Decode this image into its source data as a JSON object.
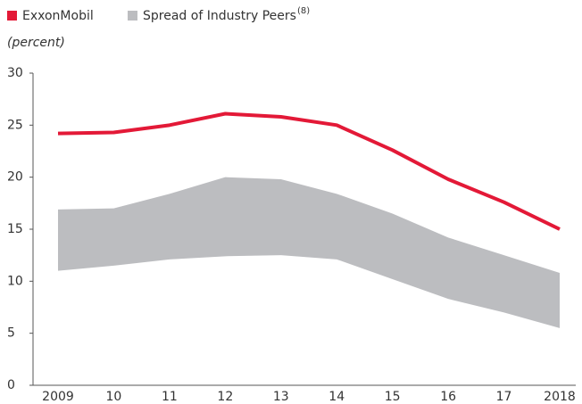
{
  "chart_data": {
    "type": "line",
    "y_label": "(percent)",
    "categories": [
      "2009",
      "10",
      "11",
      "12",
      "13",
      "14",
      "15",
      "16",
      "17",
      "2018"
    ],
    "series": [
      {
        "name": "ExxonMobil",
        "color": "#e31937",
        "values": [
          24.2,
          24.3,
          25.0,
          26.1,
          25.8,
          25.0,
          22.6,
          19.8,
          17.6,
          15.0
        ]
      }
    ],
    "band": {
      "name": "Spread of Industry Peers",
      "footnote_marker": "(8)",
      "color": "#bcbdc0",
      "high": [
        16.9,
        17.0,
        18.4,
        20.0,
        19.8,
        18.4,
        16.5,
        14.2,
        12.5,
        10.8
      ],
      "low": [
        11.0,
        11.5,
        12.1,
        12.4,
        12.5,
        12.1,
        10.2,
        8.3,
        7.0,
        5.5
      ]
    },
    "ylim": [
      0,
      30
    ],
    "yticks": [
      0,
      5,
      10,
      15,
      20,
      25,
      30
    ]
  }
}
